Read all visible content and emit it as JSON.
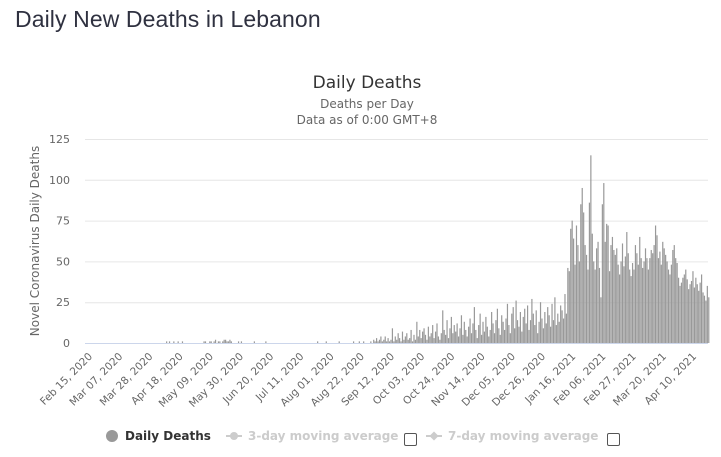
{
  "page": {
    "title": "Daily New Deaths in Lebanon"
  },
  "chart_data": {
    "type": "bar",
    "title": "Daily Deaths",
    "subtitle_lines": [
      "Deaths per Day",
      "Data as of 0:00 GMT+8"
    ],
    "xlabel": "",
    "ylabel": "Novel Coronavirus Daily Deaths",
    "ylim": [
      0,
      125
    ],
    "yticks": [
      0,
      25,
      50,
      75,
      100,
      125
    ],
    "grid": true,
    "x_start_date": "2020-02-15",
    "x_end_date": "2021-04-21",
    "xtick_labels": [
      "Feb 15, 2020",
      "Mar 07, 2020",
      "Mar 28, 2020",
      "Apr 18, 2020",
      "May 09, 2020",
      "May 30, 2020",
      "Jun 20, 2020",
      "Jul 11, 2020",
      "Aug 01, 2020",
      "Aug 22, 2020",
      "Sep 12, 2020",
      "Oct 03, 2020",
      "Oct 24, 2020",
      "Nov 14, 2020",
      "Dec 05, 2020",
      "Dec 26, 2020",
      "Jan 16, 2021",
      "Feb 06, 2021",
      "Feb 27, 2021",
      "Mar 20, 2021",
      "Apr 10, 2021"
    ],
    "xtick_interval_days": 21,
    "series": [
      {
        "name": "Daily Deaths",
        "color": "#999999",
        "values": [
          0,
          0,
          0,
          0,
          0,
          0,
          0,
          0,
          0,
          0,
          0,
          0,
          0,
          0,
          0,
          0,
          0,
          0,
          0,
          0,
          0,
          1,
          0,
          1,
          0,
          0,
          1,
          0,
          0,
          1,
          0,
          0,
          1,
          0,
          0,
          0,
          0,
          0,
          0,
          0,
          0,
          0,
          0,
          0,
          0,
          0,
          0,
          1,
          1,
          0,
          0,
          1,
          1,
          0,
          1,
          2,
          0,
          1,
          1,
          0,
          1,
          2,
          2,
          1,
          1,
          2,
          1,
          0,
          0,
          0,
          0,
          1,
          0,
          1,
          0,
          0,
          0,
          0,
          0,
          0,
          0,
          0,
          1,
          0,
          0,
          0,
          0,
          0,
          0,
          0,
          1,
          0,
          0,
          0,
          0,
          0,
          0,
          0,
          0,
          0,
          0,
          0,
          0,
          0,
          0,
          0,
          0,
          0,
          0,
          0,
          0,
          0,
          0,
          0,
          0,
          0,
          0,
          0,
          0,
          0,
          0,
          0,
          0,
          0,
          0,
          0,
          1,
          0,
          0,
          0,
          0,
          0,
          1,
          0,
          0,
          0,
          0,
          0,
          0,
          0,
          0,
          1,
          0,
          0,
          0,
          0,
          0,
          0,
          0,
          0,
          0,
          1,
          0,
          0,
          0,
          1,
          0,
          0,
          1,
          0,
          0,
          0,
          0,
          1,
          0,
          2,
          1,
          3,
          1,
          2,
          4,
          1,
          2,
          4,
          1,
          3,
          1,
          2,
          9,
          1,
          4,
          2,
          6,
          3,
          1,
          7,
          2,
          4,
          6,
          2,
          3,
          8,
          1,
          5,
          2,
          13,
          4,
          8,
          3,
          7,
          9,
          5,
          2,
          10,
          4,
          6,
          11,
          3,
          7,
          12,
          4,
          2,
          6,
          20,
          8,
          5,
          14,
          3,
          9,
          16,
          6,
          11,
          7,
          12,
          4,
          9,
          17,
          5,
          13,
          8,
          4,
          10,
          15,
          6,
          12,
          22,
          8,
          3,
          11,
          18,
          5,
          13,
          7,
          16,
          10,
          4,
          8,
          19,
          12,
          6,
          14,
          21,
          9,
          5,
          17,
          13,
          8,
          15,
          24,
          11,
          6,
          18,
          22,
          9,
          26,
          14,
          10,
          19,
          7,
          16,
          21,
          12,
          23,
          8,
          14,
          27,
          18,
          11,
          20,
          6,
          13,
          25,
          15,
          9,
          19,
          12,
          22,
          17,
          10,
          24,
          14,
          28,
          11,
          18,
          13,
          23,
          20,
          15,
          30,
          18,
          46,
          44,
          70,
          75,
          64,
          48,
          72,
          60,
          50,
          85,
          95,
          80,
          60,
          54,
          45,
          86,
          115,
          67,
          50,
          45,
          58,
          62,
          46,
          28,
          85,
          98,
          62,
          73,
          72,
          44,
          60,
          65,
          57,
          54,
          58,
          48,
          42,
          50,
          61,
          47,
          53,
          68,
          55,
          45,
          41,
          49,
          45,
          60,
          55,
          48,
          65,
          52,
          46,
          50,
          58,
          52,
          45,
          52,
          57,
          55,
          60,
          72,
          66,
          52,
          56,
          48,
          62,
          58,
          54,
          50,
          45,
          42,
          48,
          57,
          60,
          52,
          49,
          40,
          35,
          37,
          40,
          42,
          45,
          39,
          33,
          36,
          38,
          44,
          34,
          40,
          36,
          32,
          37,
          42,
          31,
          29,
          26,
          35,
          28
        ]
      }
    ],
    "legend": {
      "position": "bottom",
      "items": [
        {
          "label": "Daily Deaths",
          "marker": "circle",
          "enabled": true
        },
        {
          "label": "3-day moving average",
          "marker": "circle-line",
          "enabled": false,
          "checked": false
        },
        {
          "label": "7-day moving average",
          "marker": "diamond-line",
          "enabled": false,
          "checked": false
        }
      ]
    }
  },
  "colors": {
    "bar": "#999999",
    "grid": "#e6e6e6",
    "axis": "#ccd6eb",
    "text": "#666666",
    "title": "#333333",
    "legend_disabled": "#cccccc"
  }
}
